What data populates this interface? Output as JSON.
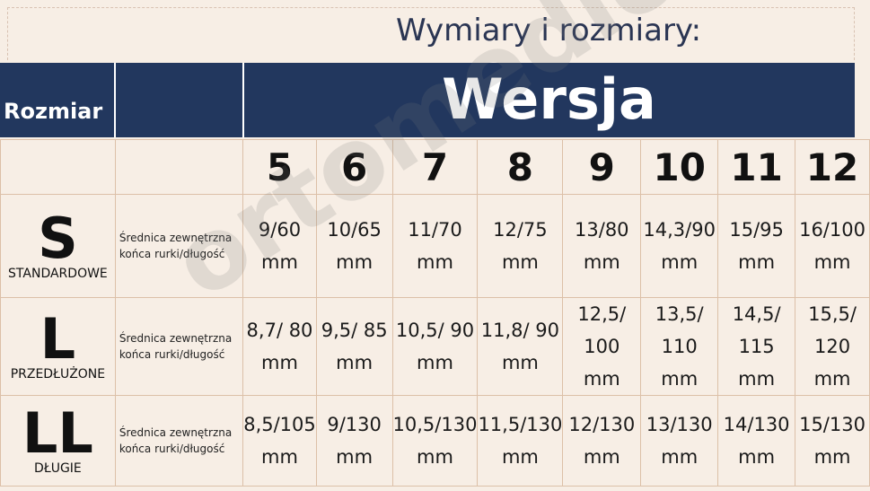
{
  "title": "Wymiary i rozmiary:",
  "header": {
    "size_label": "Rozmiar",
    "version_label": "Wersja"
  },
  "versions": [
    "5",
    "6",
    "7",
    "8",
    "9",
    "10",
    "11",
    "12"
  ],
  "rows": [
    {
      "size": "S",
      "size_name": "STANDARDOWE",
      "desc": [
        "Średnica zewnętrzna",
        "końca rurki/długość"
      ],
      "values": [
        "9/60 mm",
        "10/65 mm",
        "11/70 mm",
        "12/75 mm",
        "13/80 mm",
        "14,3/90 mm",
        "15/95 mm",
        "16/100 mm"
      ]
    },
    {
      "size": "L",
      "size_name": "PRZEDŁUŻONE",
      "desc": [
        "Średnica zewnętrzna",
        "końca rurki/długość"
      ],
      "values": [
        "8,7/ 80 mm",
        "9,5/ 85 mm",
        "10,5/ 90 mm",
        "11,8/ 90 mm",
        "12,5/ 100 mm",
        "13,5/ 110 mm",
        "14,5/ 115 mm",
        "15,5/ 120 mm"
      ]
    },
    {
      "size": "LL",
      "size_name": "DŁUGIE",
      "desc": [
        "Średnica zewnętrzna",
        "końca rurki/długość"
      ],
      "values": [
        "8,5/105 mm",
        "9/130 mm",
        "10,5/130 mm",
        "11,5/130 mm",
        "12/130 mm",
        "13/130 mm",
        "14/130 mm",
        "15/130 mm"
      ]
    }
  ],
  "watermark": "ortomedica.pl",
  "colors": {
    "navy": "#22375e",
    "background": "#f7eee5",
    "border": "#dcc0a8"
  }
}
